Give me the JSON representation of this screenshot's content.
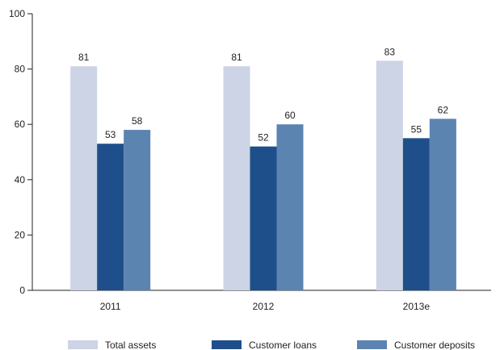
{
  "chart_data": {
    "type": "bar",
    "categories": [
      "2011",
      "2012",
      "2013e"
    ],
    "series": [
      {
        "name": "Total assets",
        "values": [
          81,
          81,
          83
        ],
        "color": "#ccd4e5"
      },
      {
        "name": "Customer loans",
        "values": [
          53,
          52,
          55
        ],
        "color": "#1f4f8b"
      },
      {
        "name": "Customer deposits",
        "values": [
          58,
          60,
          62
        ],
        "color": "#5b84b1"
      }
    ],
    "title": "",
    "xlabel": "",
    "ylabel": "",
    "ylim": [
      0,
      100
    ],
    "yticks": [
      0,
      20,
      40,
      60,
      80,
      100
    ],
    "data_labels": true,
    "grid": false,
    "legend": "bottom"
  }
}
